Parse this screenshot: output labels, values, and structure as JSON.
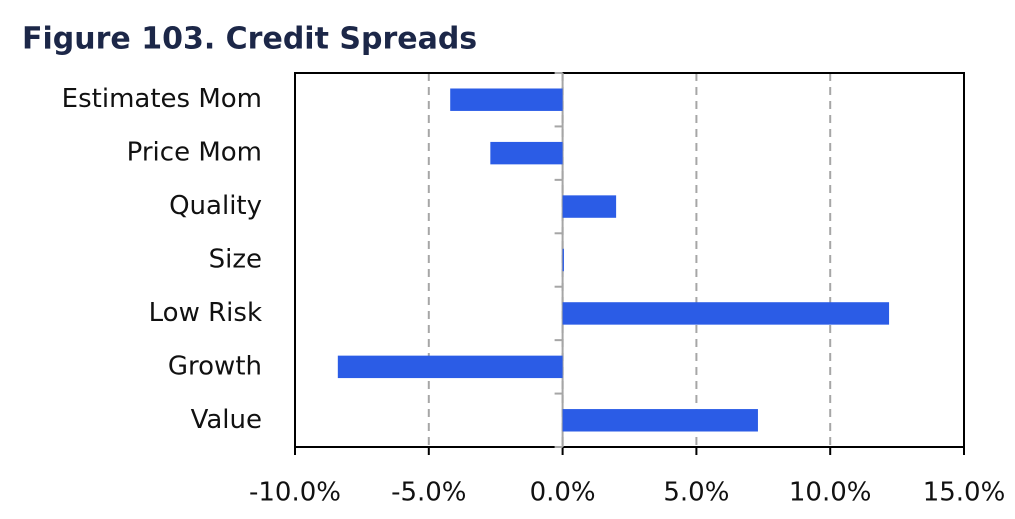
{
  "chart_data": {
    "type": "hbar",
    "title": "Figure 103. Credit Spreads",
    "categories": [
      "Estimates Mom",
      "Price Mom",
      "Quality",
      "Size",
      "Low Risk",
      "Growth",
      "Value"
    ],
    "values": [
      -4.2,
      -2.7,
      2.0,
      0.05,
      12.2,
      -8.4,
      7.3
    ],
    "color": "#2b5ce6",
    "xlim": [
      -10,
      15
    ],
    "xticks": [
      {
        "value": -10,
        "label": "-10.0%"
      },
      {
        "value": -5,
        "label": "-5.0%"
      },
      {
        "value": 0,
        "label": "0.0%"
      },
      {
        "value": 5,
        "label": "5.0%"
      },
      {
        "value": 10,
        "label": "10.0%"
      },
      {
        "value": 15,
        "label": "15.0%"
      }
    ],
    "grid": true
  }
}
